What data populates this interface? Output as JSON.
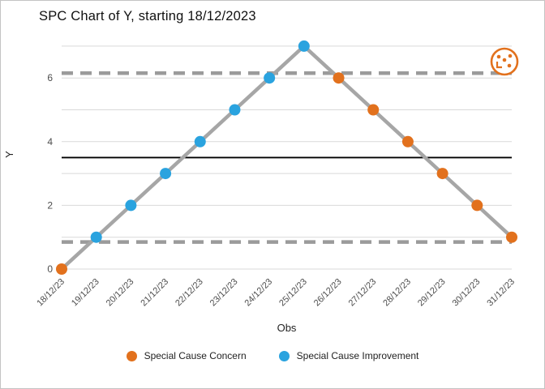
{
  "colors": {
    "concern": "#e2711d",
    "improvement": "#2aa3df",
    "data_line": "#a6a6a6",
    "limit_line": "#9b9b9b",
    "center_line": "#000000",
    "grid": "#d9d9d9",
    "tick_text": "#4d4d4d",
    "logo": "#e2711d"
  },
  "chart_data": {
    "type": "line",
    "title": "SPC Chart of Y, starting 18/12/2023",
    "xlabel": "Obs",
    "ylabel": "Y",
    "x": [
      "18/12/23",
      "19/12/23",
      "20/12/23",
      "21/12/23",
      "22/12/23",
      "23/12/23",
      "24/12/23",
      "25/12/23",
      "26/12/23",
      "27/12/23",
      "28/12/23",
      "29/12/23",
      "30/12/23",
      "31/12/23"
    ],
    "values": [
      0,
      1,
      2,
      3,
      4,
      5,
      6,
      7,
      6,
      5,
      4,
      3,
      2,
      1
    ],
    "point_types": [
      "concern",
      "improvement",
      "improvement",
      "improvement",
      "improvement",
      "improvement",
      "improvement",
      "improvement",
      "concern",
      "concern",
      "concern",
      "concern",
      "concern",
      "concern"
    ],
    "mean": 3.5,
    "ucl": 6.15,
    "lcl": 0.85,
    "ylim": [
      0,
      7.15
    ],
    "yticks": [
      0,
      2,
      4,
      6
    ],
    "ygrid": [
      0,
      1,
      2,
      3,
      4,
      5,
      6,
      7
    ],
    "grid": "horizontal",
    "legend_position": "bottom",
    "legend": [
      {
        "label": "Special Cause Concern",
        "color_key": "concern"
      },
      {
        "label": "Special Cause Improvement",
        "color_key": "improvement"
      }
    ]
  }
}
